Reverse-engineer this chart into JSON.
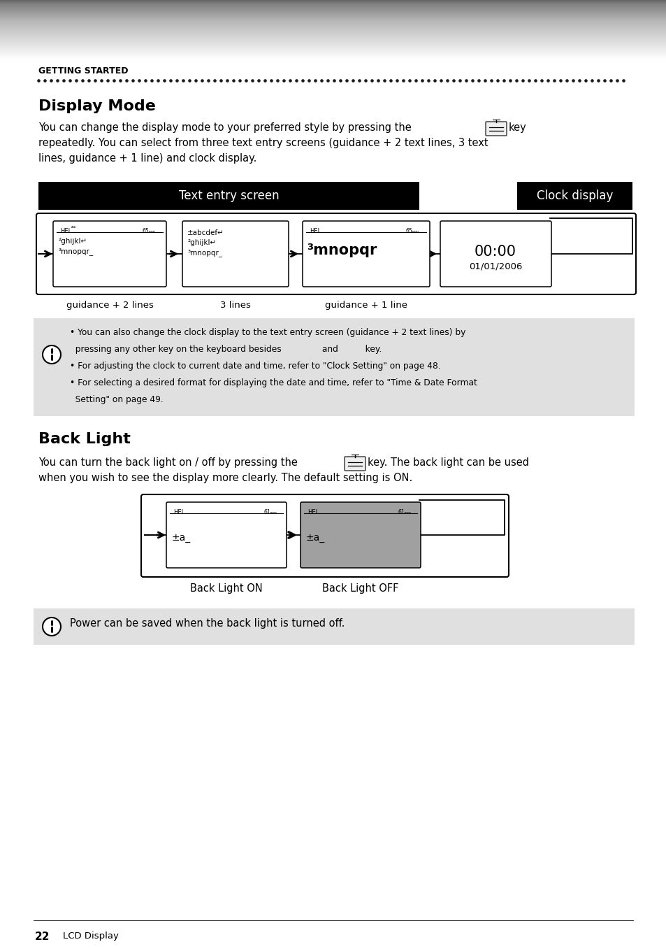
{
  "bg_color": "#ffffff",
  "note_bg": "#e0e0e0",
  "page_num": "22",
  "page_footer": "LCD Display",
  "section_label": "GETTING STARTED",
  "title1": "Display Mode",
  "body1_part1": "You can change the display mode to your preferred style by pressing the",
  "body1_part2": "key",
  "body1_line2": "repeatedly. You can select from three text entry screens (guidance + 2 text lines, 3 text",
  "body1_line3": "lines, guidance + 1 line) and clock display.",
  "black_box1_text": "Text entry screen",
  "black_box2_text": "Clock display",
  "screen1_label": "guidance + 2 lines",
  "screen2_label": "3 lines",
  "screen3_label": "guidance + 1 line",
  "note1_lines": [
    "• You can also change the clock display to the text entry screen (guidance + 2 text lines) by",
    "  pressing any other key on the keyboard besides               and          key.",
    "• For adjusting the clock to current date and time, refer to \"Clock Setting\" on page 48.",
    "• For selecting a desired format for displaying the date and time, refer to \"Time & Date Format",
    "  Setting\" on page 49."
  ],
  "title2": "Back Light",
  "body2_part1": "You can turn the back light on / off by pressing the",
  "body2_part2": "key. The back light can be used",
  "body2_line2": "when you wish to see the display more clearly. The default setting is ON.",
  "backlight_on_label": "Back Light ON",
  "backlight_off_label": "Back Light OFF",
  "note2_text": "Power can be saved when the back light is turned off.",
  "gray_screen_color": "#a0a0a0",
  "header_dark": "#777777",
  "header_mid": "#b0b0b0",
  "header_light": "#e0e0e0"
}
